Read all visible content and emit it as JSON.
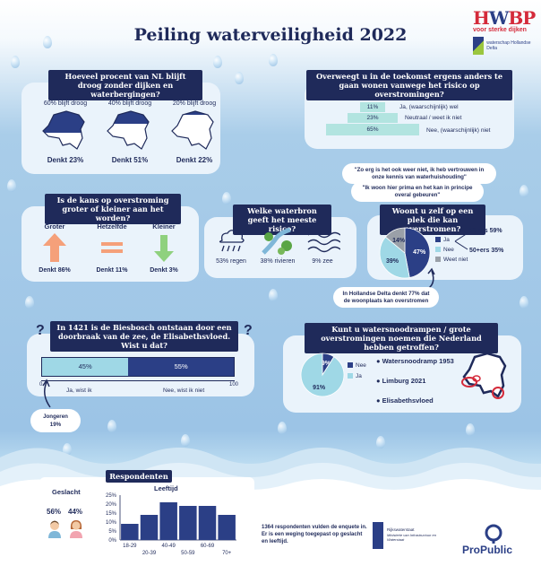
{
  "title": "Peiling waterveiligheid 2022",
  "logo_hwbp": {
    "name": "HWBP",
    "tagline": "voor sterke dijken",
    "partner": "waterschap Hollandse Delta"
  },
  "q1": {
    "title": "Hoeveel procent van NL blijft droog zonder dijken en waterbergingen?",
    "options": [
      {
        "label": "60% blijft droog",
        "result": "Denkt 23%",
        "dry_fraction": 0.6
      },
      {
        "label": "40% blijft droog",
        "result": "Denkt 51%",
        "dry_fraction": 0.4
      },
      {
        "label": "20% blijft droog",
        "result": "Denkt 22%",
        "dry_fraction": 0.2
      }
    ]
  },
  "q2": {
    "title": "Overweegt u in de toekomst ergens anders te gaan wonen vanwege het risico op overstromingen?",
    "steps": [
      {
        "value": "11%",
        "label": "Ja, (waarschijnlijk) wel"
      },
      {
        "value": "23%",
        "label": "Neutraal / weet ik niet"
      },
      {
        "value": "65%",
        "label": "Nee, (waarschijnlijk) niet"
      }
    ],
    "quote1": "\"Zo erg is het ook weer niet, ik heb vertrouwen in onze kennis van waterhuishouding\"",
    "quote2": "\"Ik woon hier prima en het kan in principe overal gebeuren\""
  },
  "q3": {
    "title": "Is de kans op overstroming groter of kleiner aan het worden?",
    "options": [
      {
        "label": "Groter",
        "result": "Denkt 86%",
        "color": "#f5a07a"
      },
      {
        "label": "Hetzelfde",
        "result": "Denkt 11%",
        "color": "#f5a07a"
      },
      {
        "label": "Kleiner",
        "result": "Denkt 3%",
        "color": "#8fd17e"
      }
    ]
  },
  "q4": {
    "title": "Welke waterbron geeft het meeste risico?",
    "options": [
      {
        "icon": "rain-icon",
        "label": "53% regen"
      },
      {
        "icon": "river-icon",
        "label": "38% rivieren"
      },
      {
        "icon": "sea-icon",
        "label": "9% zee"
      }
    ]
  },
  "q5": {
    "title": "Woont u zelf op een plek die kan overstromen?",
    "pie": [
      {
        "name": "Ja",
        "value": 47,
        "color": "#2b3f86"
      },
      {
        "name": "Nee",
        "value": 39,
        "color": "#9fd8e6"
      },
      {
        "name": "Weet niet",
        "value": 14,
        "color": "#9aa0a8"
      }
    ],
    "pie_labels": [
      "47%",
      "39%",
      "14%"
    ],
    "age_notes": [
      "50-ers 59%",
      "50+ers 35%"
    ],
    "bubble": "In Hollandse Delta denkt 77% dat de woonplaats kan overstromen"
  },
  "q6": {
    "title": "In 1421 is de Biesbosch ontstaan door een doorbraak van de zee, de Elisabethsvloed. Wist u dat?",
    "segments": [
      {
        "value": 45,
        "label": "45%",
        "answer": "Ja, wist ik"
      },
      {
        "value": 55,
        "label": "55%",
        "answer": "Nee, wist ik niet"
      }
    ],
    "axis_min": "0",
    "axis_max": "100",
    "young_label": "Jongeren",
    "young_value": "19%"
  },
  "q7": {
    "title": "Kunt u watersnoodrampen / grote overstromingen noemen die Nederland hebben getroffen?",
    "pie": [
      {
        "name": "Nee",
        "value": 9,
        "color": "#2b3f86"
      },
      {
        "name": "Ja",
        "value": 91,
        "color": "#9fd8e6"
      }
    ],
    "pie_labels": [
      "9%",
      "91%"
    ],
    "events": [
      "Watersnoodramp 1953",
      "Limburg 2021",
      "Elisabethsvloed"
    ]
  },
  "respondents": {
    "title": "Respondenten",
    "gender_title": "Geslacht",
    "gender": [
      "56%",
      "44%"
    ],
    "age_title": "Leeftijd",
    "chart_data": {
      "type": "bar",
      "categories": [
        "18-29",
        "20-39",
        "40-49",
        "50-59",
        "60-69",
        "70+"
      ],
      "values": [
        9,
        14,
        21,
        19,
        19,
        14
      ],
      "yticks": [
        "25%",
        "20%",
        "15%",
        "10%",
        "5%",
        "0%"
      ],
      "ylim": [
        0,
        25
      ]
    }
  },
  "footer": {
    "note": "1364 respondenten vulden de enquete in. Er is een weging toegepast op geslacht en leeftijd.",
    "rijks_line1": "Rijkswaterstaat",
    "rijks_line2": "Ministerie van Infrastructuur en Waterstaat",
    "propublic": "ProPublic"
  }
}
